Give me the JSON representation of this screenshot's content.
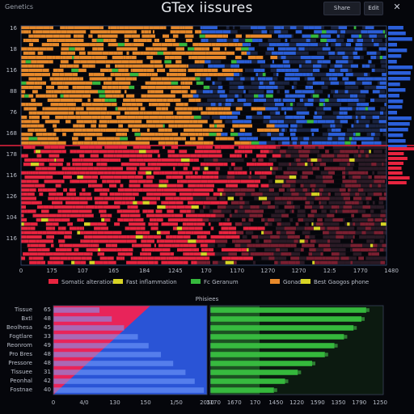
{
  "window": {
    "app_name": "Genetics",
    "title": "GTex iissures",
    "buttons": [
      "Share",
      "Edit"
    ],
    "close_icon": "close-icon"
  },
  "colors": {
    "orange": "#e8892a",
    "blue": "#2b5fd9",
    "red": "#e8243f",
    "green": "#35b83c",
    "yellow": "#d8d424",
    "black": "#05060b"
  },
  "top_chart": {
    "row_labels": [
      "16",
      "18",
      "116",
      "88",
      "76",
      "168",
      "178",
      "116",
      "126",
      "104",
      "116"
    ],
    "x_ticks": [
      "0",
      "175",
      "107",
      "165",
      "184",
      "1245",
      "170",
      "1170",
      "1270",
      "1270",
      "12:5",
      "1770",
      "1480"
    ],
    "legend": [
      {
        "label": "Somatic alterations",
        "color": "#e8243f"
      },
      {
        "label": "Fast inflammation",
        "color": "#d8d424"
      },
      {
        "label": "Fc Geranum",
        "color": "#35b83c"
      },
      {
        "label": "Gonad",
        "color": "#e8892a"
      },
      {
        "label": "Best Gaogos phone",
        "color": "#d8d424"
      }
    ]
  },
  "bottom_chart": {
    "title": "Phisiees",
    "row_labels": [
      "Tissue",
      "Bxtl",
      "Beolhesa",
      "Fogtlare",
      "Reonrom",
      "Pro Bres",
      "Pressore",
      "Tissuee",
      "Peonhal",
      "Fostnae"
    ],
    "row_values": [
      "65",
      "48",
      "45",
      "33",
      "49",
      "48",
      "48",
      "31",
      "42",
      "40"
    ],
    "x_ticks_left": [
      "0",
      "4/0",
      "130",
      "150",
      "1/50",
      "2050"
    ],
    "x_ticks_right": [
      "1170",
      "1670",
      "170",
      "1450",
      "1220",
      "1590",
      "1350",
      "1790",
      "1250"
    ],
    "chart_data": {
      "type": "bar",
      "categories": [
        "Tissue",
        "Bxtl",
        "Beolhesa",
        "Fogtlare",
        "Reonrom",
        "Pro Bres",
        "Pressore",
        "Tissuee",
        "Peonhal",
        "Fostnae"
      ],
      "series": [
        {
          "values": [
            0.3,
            0.38,
            0.46,
            0.55,
            0.62,
            0.7,
            0.78,
            0.86,
            0.92,
            0.98
          ]
        },
        {
          "values": [
            0.98,
            0.95,
            0.9,
            0.84,
            0.78,
            0.72,
            0.64,
            0.55,
            0.47,
            0.4
          ]
        }
      ]
    }
  }
}
